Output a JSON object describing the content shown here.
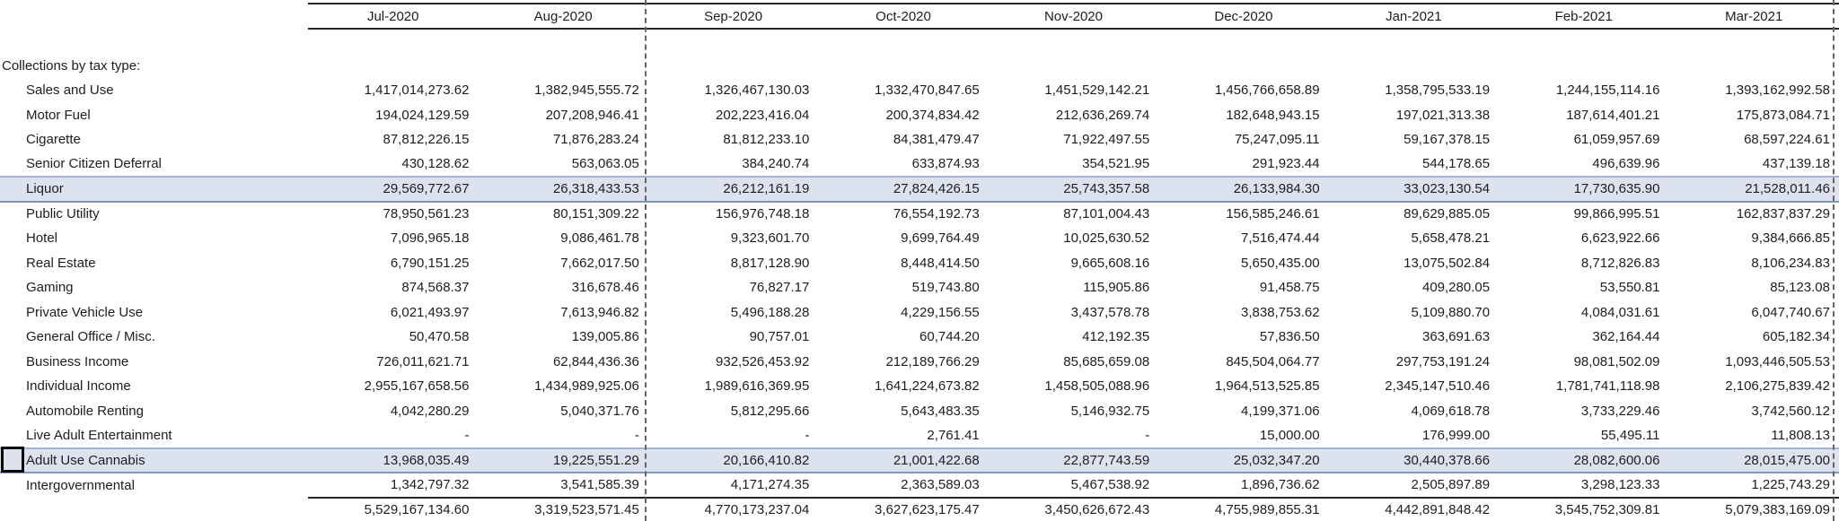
{
  "table": {
    "section_label": "Collections by tax type:",
    "columns": [
      "Jul-2020",
      "Aug-2020",
      "Sep-2020",
      "Oct-2020",
      "Nov-2020",
      "Dec-2020",
      "Jan-2021",
      "Feb-2021",
      "Mar-2021"
    ],
    "rows": [
      {
        "label": "Sales and Use",
        "highlight": false,
        "values": [
          "1,417,014,273.62",
          "1,382,945,555.72",
          "1,326,467,130.03",
          "1,332,470,847.65",
          "1,451,529,142.21",
          "1,456,766,658.89",
          "1,358,795,533.19",
          "1,244,155,114.16",
          "1,393,162,992.58"
        ]
      },
      {
        "label": "Motor Fuel",
        "highlight": false,
        "values": [
          "194,024,129.59",
          "207,208,946.41",
          "202,223,416.04",
          "200,374,834.42",
          "212,636,269.74",
          "182,648,943.15",
          "197,021,313.38",
          "187,614,401.21",
          "175,873,084.71"
        ]
      },
      {
        "label": "Cigarette",
        "highlight": false,
        "values": [
          "87,812,226.15",
          "71,876,283.24",
          "81,812,233.10",
          "84,381,479.47",
          "71,922,497.55",
          "75,247,095.11",
          "59,167,378.15",
          "61,059,957.69",
          "68,597,224.61"
        ]
      },
      {
        "label": "Senior Citizen Deferral",
        "highlight": false,
        "values": [
          "430,128.62",
          "563,063.05",
          "384,240.74",
          "633,874.93",
          "354,521.95",
          "291,923.44",
          "544,178.65",
          "496,639.96",
          "437,139.18"
        ]
      },
      {
        "label": "Liquor",
        "highlight": true,
        "values": [
          "29,569,772.67",
          "26,318,433.53",
          "26,212,161.19",
          "27,824,426.15",
          "25,743,357.58",
          "26,133,984.30",
          "33,023,130.54",
          "17,730,635.90",
          "21,528,011.46"
        ]
      },
      {
        "label": "Public Utility",
        "highlight": false,
        "values": [
          "78,950,561.23",
          "80,151,309.22",
          "156,976,748.18",
          "76,554,192.73",
          "87,101,004.43",
          "156,585,246.61",
          "89,629,885.05",
          "99,866,995.51",
          "162,837,837.29"
        ]
      },
      {
        "label": "Hotel",
        "highlight": false,
        "values": [
          "7,096,965.18",
          "9,086,461.78",
          "9,323,601.70",
          "9,699,764.49",
          "10,025,630.52",
          "7,516,474.44",
          "5,658,478.21",
          "6,623,922.66",
          "9,384,666.85"
        ]
      },
      {
        "label": "Real Estate",
        "highlight": false,
        "values": [
          "6,790,151.25",
          "7,662,017.50",
          "8,817,128.90",
          "8,448,414.50",
          "9,665,608.16",
          "5,650,435.00",
          "13,075,502.84",
          "8,712,826.83",
          "8,106,234.83"
        ]
      },
      {
        "label": "Gaming",
        "highlight": false,
        "values": [
          "874,568.37",
          "316,678.46",
          "76,827.17",
          "519,743.80",
          "115,905.86",
          "91,458.75",
          "409,280.05",
          "53,550.81",
          "85,123.08"
        ]
      },
      {
        "label": "Private Vehicle Use",
        "highlight": false,
        "values": [
          "6,021,493.97",
          "7,613,946.82",
          "5,496,188.28",
          "4,229,156.55",
          "3,437,578.78",
          "3,838,753.62",
          "5,109,880.70",
          "4,084,031.61",
          "6,047,740.67"
        ]
      },
      {
        "label": "General Office / Misc.",
        "highlight": false,
        "values": [
          "50,470.58",
          "139,005.86",
          "90,757.01",
          "60,744.20",
          "412,192.35",
          "57,836.50",
          "363,691.63",
          "362,164.44",
          "605,182.34"
        ]
      },
      {
        "label": "Business Income",
        "highlight": false,
        "values": [
          "726,011,621.71",
          "62,844,436.36",
          "932,526,453.92",
          "212,189,766.29",
          "85,685,659.08",
          "845,504,064.77",
          "297,753,191.24",
          "98,081,502.09",
          "1,093,446,505.53"
        ]
      },
      {
        "label": "Individual Income",
        "highlight": false,
        "values": [
          "2,955,167,658.56",
          "1,434,989,925.06",
          "1,989,616,369.95",
          "1,641,224,673.82",
          "1,458,505,088.96",
          "1,964,513,525.85",
          "2,345,147,510.46",
          "1,781,741,118.98",
          "2,106,275,839.42"
        ]
      },
      {
        "label": "Automobile Renting",
        "highlight": false,
        "values": [
          "4,042,280.29",
          "5,040,371.76",
          "5,812,295.66",
          "5,643,483.35",
          "5,146,932.75",
          "4,199,371.06",
          "4,069,618.78",
          "3,733,229.46",
          "3,742,560.12"
        ]
      },
      {
        "label": "Live Adult Entertainment",
        "highlight": false,
        "values": [
          "-",
          "-",
          "-",
          "2,761.41",
          "-",
          "15,000.00",
          "176,999.00",
          "55,495.11",
          "11,808.13"
        ]
      },
      {
        "label": "Adult Use Cannabis",
        "highlight": true,
        "values": [
          "13,968,035.49",
          "19,225,551.29",
          "20,166,410.82",
          "21,001,422.68",
          "22,877,743.59",
          "25,032,347.20",
          "30,440,378.66",
          "28,082,600.06",
          "28,015,475.00"
        ]
      },
      {
        "label": "Intergovernmental",
        "highlight": false,
        "values": [
          "1,342,797.32",
          "3,541,585.39",
          "4,171,274.35",
          "2,363,589.03",
          "5,467,538.92",
          "1,896,736.62",
          "2,505,897.89",
          "3,298,123.33",
          "1,225,743.29"
        ]
      }
    ],
    "total_row": {
      "values": [
        "5,529,167,134.60",
        "3,319,523,571.45",
        "4,770,173,237.04",
        "3,627,623,175.47",
        "3,450,626,672.43",
        "4,755,989,855.31",
        "4,442,891,848.42",
        "3,545,752,309.81",
        "5,079,383,169.09"
      ]
    }
  },
  "colors": {
    "highlight_fill": "#dce3ee",
    "highlight_border_top": "#a3b2cf",
    "highlight_border_bottom": "#8296b9",
    "header_rule": "#262626",
    "page_break_dash": "#666666",
    "text": "#1d1d1d"
  }
}
